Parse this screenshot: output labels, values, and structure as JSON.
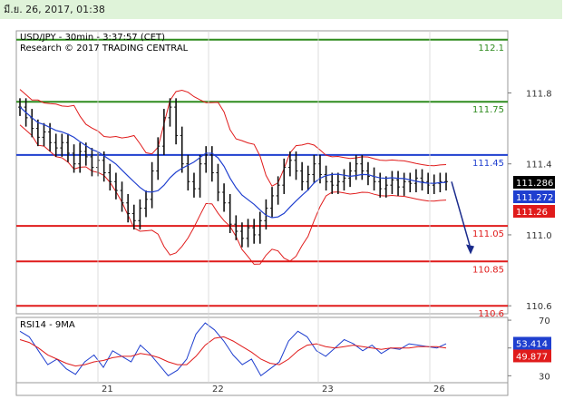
{
  "header": {
    "timestamp": "มี.ย. 26, 2017, 01:38"
  },
  "chart_data": [
    {
      "type": "line",
      "name": "USD/JPY candlestick",
      "title": "USD/JPY - 30min - 3:37:57 (CET)",
      "subtitle": "Research © 2017 TRADING CENTRAL",
      "x_ticks": [
        "21",
        "22",
        "23",
        "26"
      ],
      "y_ticks": [
        110.6,
        111.0,
        111.4,
        111.8
      ],
      "ylim": [
        110.555,
        112.15
      ],
      "price_series": [
        111.72,
        111.66,
        111.6,
        111.55,
        111.58,
        111.52,
        111.49,
        111.52,
        111.46,
        111.4,
        111.47,
        111.44,
        111.38,
        111.42,
        111.35,
        111.3,
        111.25,
        111.18,
        111.12,
        111.08,
        111.15,
        111.2,
        111.36,
        111.5,
        111.66,
        111.72,
        111.56,
        111.4,
        111.3,
        111.26,
        111.4,
        111.45,
        111.35,
        111.24,
        111.18,
        111.06,
        111.02,
        110.98,
        111.04,
        111.0,
        111.08,
        111.15,
        111.22,
        111.28,
        111.38,
        111.42,
        111.36,
        111.3,
        111.34,
        111.4,
        111.34,
        111.3,
        111.28,
        111.3,
        111.32,
        111.36,
        111.4,
        111.36,
        111.33,
        111.3,
        111.26,
        111.28,
        111.31,
        111.27,
        111.3,
        111.29,
        111.32,
        111.3,
        111.28,
        111.29,
        111.3,
        111.3
      ],
      "levels": [
        {
          "value": 112.1,
          "label": "112.1",
          "color": "#2e8b1e"
        },
        {
          "value": 111.75,
          "label": "111.75",
          "color": "#2e8b1e"
        },
        {
          "value": 111.45,
          "label": "111.45",
          "color": "#1f3fcf"
        },
        {
          "value": 111.05,
          "label": "111.05",
          "color": "#e01b1b"
        },
        {
          "value": 110.85,
          "label": "110.85",
          "color": "#e01b1b"
        },
        {
          "value": 110.6,
          "label": "110.6",
          "color": "#e01b1b"
        }
      ],
      "price_tags": [
        {
          "value": 111.286,
          "label": "111.286",
          "bg": "#000000",
          "fg": "#ffffff"
        },
        {
          "value": 111.272,
          "label": "111.272",
          "bg": "#1f3fcf",
          "fg": "#ffffff"
        },
        {
          "value": 111.26,
          "label": "111.26",
          "bg": "#e01b1b",
          "fg": "#ffffff"
        }
      ],
      "forecast_arrow": {
        "from": 111.3,
        "to": 110.9,
        "color": "#1a2b8c"
      },
      "colors": {
        "bars": "#111111",
        "bollinger": "#e01b1b",
        "ma": "#1f3fcf",
        "support": "#e01b1b",
        "resistance": "#2e8b1e",
        "pivot": "#1f3fcf"
      }
    },
    {
      "type": "line",
      "name": "RSI",
      "title": "RSI14 - 9MA",
      "y_ticks": [
        30,
        50,
        70
      ],
      "ylim": [
        25,
        72
      ],
      "series": [
        {
          "name": "RSI14",
          "color": "#1f3fcf",
          "values": [
            62,
            58,
            48,
            38,
            42,
            35,
            31,
            40,
            45,
            36,
            48,
            44,
            40,
            52,
            46,
            38,
            30,
            34,
            42,
            60,
            68,
            63,
            55,
            45,
            38,
            42,
            30,
            35,
            40,
            55,
            62,
            58,
            48,
            44,
            50,
            56,
            53,
            48,
            52,
            46,
            50,
            49,
            53,
            52,
            51,
            50,
            53
          ]
        },
        {
          "name": "9MA",
          "color": "#e01b1b",
          "values": [
            56,
            54,
            50,
            45,
            42,
            39,
            37,
            38,
            40,
            41,
            43,
            44,
            44,
            46,
            45,
            43,
            40,
            38,
            38,
            44,
            52,
            57,
            58,
            55,
            51,
            47,
            42,
            39,
            38,
            42,
            48,
            52,
            53,
            51,
            50,
            51,
            52,
            51,
            50,
            49,
            50,
            50,
            50,
            51,
            51,
            51,
            50
          ]
        }
      ],
      "tags": [
        {
          "value": 53.414,
          "label": "53.414",
          "bg": "#1f3fcf",
          "fg": "#ffffff"
        },
        {
          "value": 49.877,
          "label": "49.877",
          "bg": "#e01b1b",
          "fg": "#ffffff"
        }
      ]
    }
  ]
}
